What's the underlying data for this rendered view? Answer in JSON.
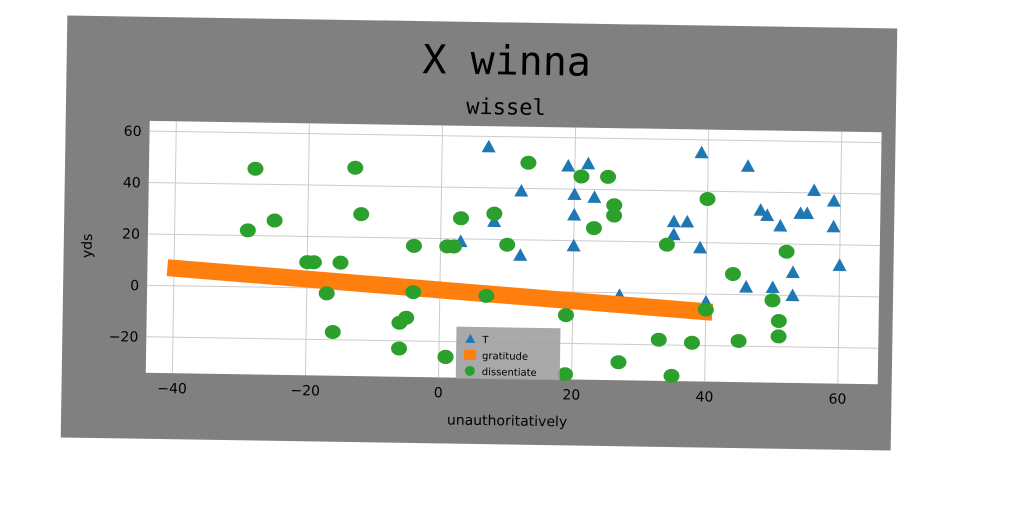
{
  "chart_data": {
    "type": "scatter",
    "title": "X winna",
    "subtitle": "wissel",
    "xlabel": "unauthoritatively",
    "ylabel": "yds",
    "xlim": [
      -44,
      66
    ],
    "ylim": [
      -34,
      64
    ],
    "xticks": [
      "−40",
      "−20",
      "0",
      "20",
      "40",
      "60"
    ],
    "xtick_values": [
      -40,
      -20,
      0,
      20,
      40,
      60
    ],
    "yticks": [
      "−20",
      "0",
      "20",
      "40",
      "60"
    ],
    "ytick_values": [
      -20,
      0,
      20,
      40,
      60
    ],
    "grid": true,
    "legend_position": "lower-center",
    "series": [
      {
        "name": "T",
        "marker": "triangle",
        "color": "#1f77b4",
        "points": [
          [
            7,
            56
          ],
          [
            8,
            27
          ],
          [
            12,
            39
          ],
          [
            12,
            14
          ],
          [
            19,
            49
          ],
          [
            20,
            30
          ],
          [
            20,
            38
          ],
          [
            20,
            18
          ],
          [
            22,
            50
          ],
          [
            23,
            37
          ],
          [
            35,
            23
          ],
          [
            35,
            28
          ],
          [
            37,
            28
          ],
          [
            39,
            55
          ],
          [
            39,
            18
          ],
          [
            40,
            -3
          ],
          [
            46,
            50
          ],
          [
            46,
            3
          ],
          [
            48,
            33
          ],
          [
            49,
            31
          ],
          [
            50,
            3
          ],
          [
            51,
            27
          ],
          [
            53,
            9
          ],
          [
            53,
            0
          ],
          [
            54,
            32
          ],
          [
            55,
            32
          ],
          [
            56,
            41
          ],
          [
            59,
            37
          ],
          [
            59,
            27
          ],
          [
            60,
            12
          ],
          [
            3,
            19
          ],
          [
            27,
            -1
          ]
        ]
      },
      {
        "name": "gratitude",
        "marker": "line-band",
        "color": "#ff7f0e",
        "points": [
          [
            -41,
            7
          ],
          [
            41,
            -7
          ]
        ]
      },
      {
        "name": "dissentiate",
        "marker": "circle",
        "color": "#2ca02c",
        "points": [
          [
            -28,
            46
          ],
          [
            -29,
            22
          ],
          [
            -25,
            26
          ],
          [
            -20,
            10
          ],
          [
            -19,
            10
          ],
          [
            -17,
            -2
          ],
          [
            -16,
            -17
          ],
          [
            -15,
            10
          ],
          [
            -13,
            47
          ],
          [
            -12,
            29
          ],
          [
            -6,
            -23
          ],
          [
            -6,
            -13
          ],
          [
            -5,
            -11
          ],
          [
            -4,
            17
          ],
          [
            -4,
            -1
          ],
          [
            1,
            17
          ],
          [
            1,
            -26
          ],
          [
            2,
            17
          ],
          [
            3,
            28
          ],
          [
            7,
            -2
          ],
          [
            8,
            30
          ],
          [
            10,
            18
          ],
          [
            13,
            50
          ],
          [
            19,
            -9
          ],
          [
            19,
            -32
          ],
          [
            21,
            45
          ],
          [
            23,
            25
          ],
          [
            25,
            45
          ],
          [
            26,
            30
          ],
          [
            26,
            34
          ],
          [
            27,
            -27
          ],
          [
            33,
            -18
          ],
          [
            34,
            19
          ],
          [
            35,
            -32
          ],
          [
            38,
            -19
          ],
          [
            40,
            -6
          ],
          [
            40,
            37
          ],
          [
            44,
            8
          ],
          [
            45,
            -18
          ],
          [
            50,
            -2
          ],
          [
            51,
            -10
          ],
          [
            51,
            -16
          ],
          [
            52,
            17
          ],
          [
            1,
            -26
          ]
        ]
      }
    ]
  }
}
